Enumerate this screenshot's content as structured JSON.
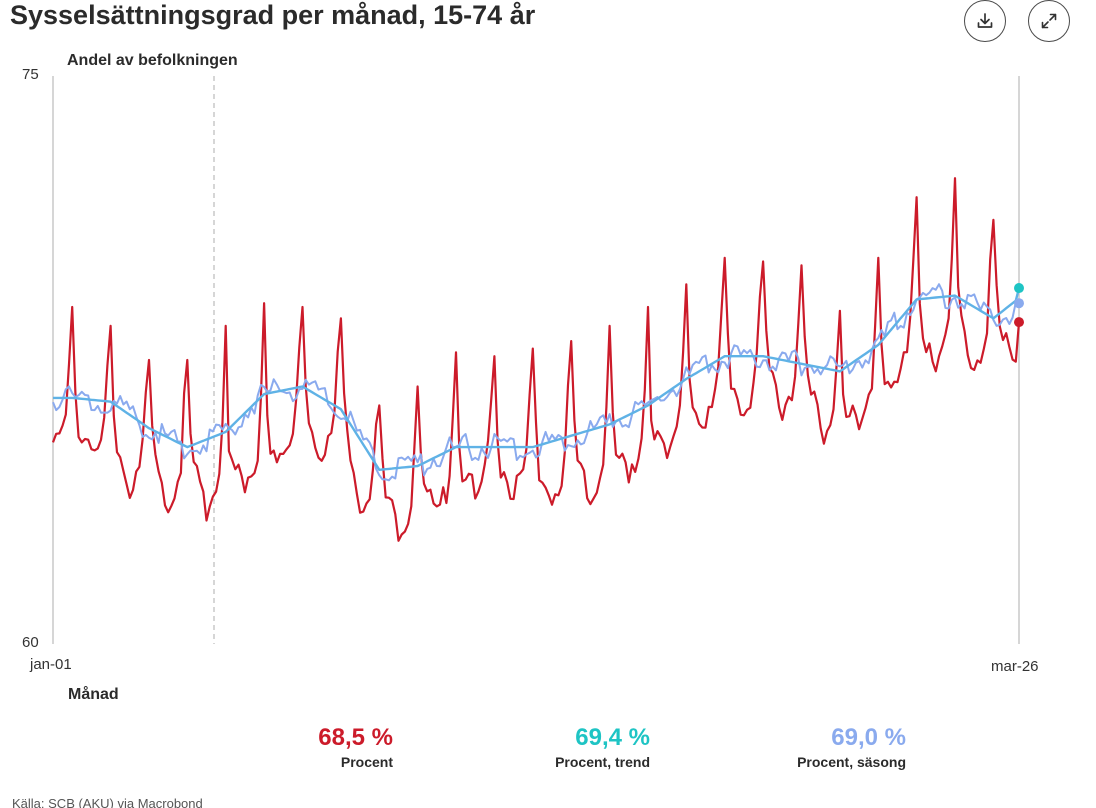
{
  "header": {
    "title": "Sysselsättningsgrad per månad, 15-74 år",
    "download_icon": "download-icon",
    "expand_icon": "expand-icon"
  },
  "chart_data": {
    "type": "line",
    "ylabel": "Andel av befolkningen",
    "xlabel": "Månad",
    "ylim": [
      60,
      75
    ],
    "yticks": [
      "75",
      "60"
    ],
    "xtick_labels": [
      "jan-01",
      "mar-26"
    ],
    "grid": false,
    "x": {
      "start": "2001-01",
      "end": "2026-03",
      "frequency": "monthly"
    },
    "series": [
      {
        "name": "Procent",
        "color": "#cc1b2a",
        "annual_means": [
          66.2,
          65.8,
          65.0,
          64.9,
          64.8,
          65.4,
          66.3,
          65.9,
          64.0,
          64.1,
          64.9,
          65.1,
          65.0,
          65.1,
          65.2,
          65.6,
          66.5,
          67.2,
          67.5,
          67.4,
          66.1,
          67.3,
          68.6,
          68.6,
          68.5,
          68.5
        ],
        "july_peaks": [
          68.9,
          68.4,
          67.5,
          67.5,
          68.4,
          69.0,
          68.9,
          68.6,
          66.3,
          66.8,
          67.7,
          67.6,
          67.8,
          68.0,
          68.4,
          68.9,
          69.5,
          70.2,
          70.1,
          70.0,
          68.8,
          70.2,
          71.8,
          72.3,
          71.2,
          null
        ],
        "last_value": 68.5
      },
      {
        "name": "Procent, trend",
        "color": "#1ec4c4",
        "annual_means": [
          66.5,
          66.4,
          65.7,
          65.2,
          65.6,
          66.6,
          66.8,
          66.2,
          64.6,
          64.7,
          65.2,
          65.2,
          65.2,
          65.5,
          65.8,
          66.3,
          67.0,
          67.6,
          67.6,
          67.4,
          67.2,
          67.9,
          69.1,
          69.2,
          68.6,
          69.4
        ],
        "last_value": 69.4
      },
      {
        "name": "Procent, säsong",
        "color": "#8aaaee",
        "annual_means": [
          66.5,
          66.4,
          65.7,
          65.2,
          65.6,
          66.6,
          66.8,
          66.2,
          64.6,
          64.7,
          65.2,
          65.2,
          65.2,
          65.5,
          65.8,
          66.3,
          67.0,
          67.6,
          67.6,
          67.4,
          67.2,
          67.9,
          69.1,
          69.2,
          68.6,
          69.0
        ],
        "last_value": 69.0
      }
    ]
  },
  "summary": [
    {
      "value": "68,5 %",
      "label": "Procent",
      "color": "#cc1b2a"
    },
    {
      "value": "69,4 %",
      "label": "Procent, trend",
      "color": "#1ec4c4"
    },
    {
      "value": "69,0 %",
      "label": "Procent, säsong",
      "color": "#8aaaee"
    }
  ],
  "footer": {
    "source": "Källa: SCB (AKU) via Macrobond"
  }
}
